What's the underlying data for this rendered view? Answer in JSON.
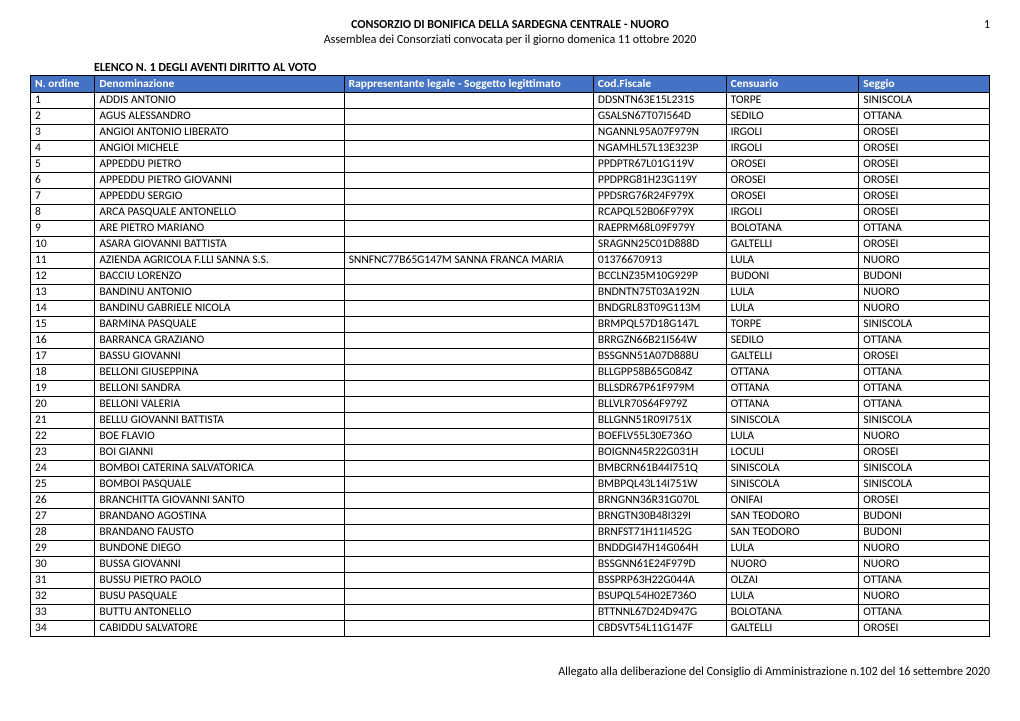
{
  "header": {
    "title": "CONSORZIO DI BONIFICA DELLA SARDEGNA CENTRALE - NUORO",
    "subtitle": "Assemblea dei Consorziati convocata per il giorno domenica 11 ottobre 2020",
    "page_number": "1",
    "list_title": "ELENCO N. 1 DEGLI AVENTI DIRITTO AL VOTO"
  },
  "table": {
    "columns": [
      "N. ordine",
      "Denominazione",
      "Rappresentante legale - Soggetto legittimato",
      "Cod.Fiscale",
      "Censuario",
      "Seggio"
    ],
    "rows": [
      [
        "1",
        "ADDIS ANTONIO",
        "",
        "DDSNTN63E15L231S",
        "TORPE",
        "SINISCOLA"
      ],
      [
        "2",
        "AGUS ALESSANDRO",
        "",
        "GSALSN67T07I564D",
        "SEDILO",
        "OTTANA"
      ],
      [
        "3",
        "ANGIOI ANTONIO LIBERATO",
        "",
        "NGANNL95A07F979N",
        "IRGOLI",
        "OROSEI"
      ],
      [
        "4",
        "ANGIOI MICHELE",
        "",
        "NGAMHL57L13E323P",
        "IRGOLI",
        "OROSEI"
      ],
      [
        "5",
        "APPEDDU PIETRO",
        "",
        "PPDPTR67L01G119V",
        "OROSEI",
        "OROSEI"
      ],
      [
        "6",
        "APPEDDU PIETRO GIOVANNI",
        "",
        "PPDPRG81H23G119Y",
        "OROSEI",
        "OROSEI"
      ],
      [
        "7",
        "APPEDDU SERGIO",
        "",
        "PPDSRG76R24F979X",
        "OROSEI",
        "OROSEI"
      ],
      [
        "8",
        "ARCA PASQUALE ANTONELLO",
        "",
        "RCAPQL52B06F979X",
        "IRGOLI",
        "OROSEI"
      ],
      [
        "9",
        "ARE PIETRO MARIANO",
        "",
        "RAEPRM68L09F979Y",
        "BOLOTANA",
        "OTTANA"
      ],
      [
        "10",
        "ASARA GIOVANNI BATTISTA",
        "",
        "SRAGNN25C01D888D",
        "GALTELLI",
        "OROSEI"
      ],
      [
        "11",
        "AZIENDA AGRICOLA F.LLI SANNA S.S.",
        "SNNFNC77B65G147M SANNA FRANCA MARIA",
        "01376670913",
        "LULA",
        "NUORO"
      ],
      [
        "12",
        "BACCIU LORENZO",
        "",
        "BCCLNZ35M10G929P",
        "BUDONI",
        "BUDONI"
      ],
      [
        "13",
        "BANDINU ANTONIO",
        "",
        "BNDNTN75T03A192N",
        "LULA",
        "NUORO"
      ],
      [
        "14",
        "BANDINU GABRIELE NICOLA",
        "",
        "BNDGRL83T09G113M",
        "LULA",
        "NUORO"
      ],
      [
        "15",
        "BARMINA PASQUALE",
        "",
        "BRMPQL57D18G147L",
        "TORPE",
        "SINISCOLA"
      ],
      [
        "16",
        "BARRANCA GRAZIANO",
        "",
        "BRRGZN66B21I564W",
        "SEDILO",
        "OTTANA"
      ],
      [
        "17",
        "BASSU GIOVANNI",
        "",
        "BSSGNN51A07D888U",
        "GALTELLI",
        "OROSEI"
      ],
      [
        "18",
        "BELLONI GIUSEPPINA",
        "",
        "BLLGPP58B65G084Z",
        "OTTANA",
        "OTTANA"
      ],
      [
        "19",
        "BELLONI SANDRA",
        "",
        "BLLSDR67P61F979M",
        "OTTANA",
        "OTTANA"
      ],
      [
        "20",
        "BELLONI VALERIA",
        "",
        "BLLVLR70S64F979Z",
        "OTTANA",
        "OTTANA"
      ],
      [
        "21",
        "BELLU GIOVANNI BATTISTA",
        "",
        "BLLGNN51R09I751X",
        "SINISCOLA",
        "SINISCOLA"
      ],
      [
        "22",
        "BOE FLAVIO",
        "",
        "BOEFLV55L30E736O",
        "LULA",
        "NUORO"
      ],
      [
        "23",
        "BOI GIANNI",
        "",
        "BOIGNN45R22G031H",
        "LOCULI",
        "OROSEI"
      ],
      [
        "24",
        "BOMBOI CATERINA SALVATORICA",
        "",
        "BMBCRN61B44I751Q",
        "SINISCOLA",
        "SINISCOLA"
      ],
      [
        "25",
        "BOMBOI PASQUALE",
        "",
        "BMBPQL43L14I751W",
        "SINISCOLA",
        "SINISCOLA"
      ],
      [
        "26",
        "BRANCHITTA GIOVANNI SANTO",
        "",
        "BRNGNN36R31G070L",
        "ONIFAI",
        "OROSEI"
      ],
      [
        "27",
        "BRANDANO AGOSTINA",
        "",
        "BRNGTN30B48I329I",
        "SAN TEODORO",
        "BUDONI"
      ],
      [
        "28",
        "BRANDANO FAUSTO",
        "",
        "BRNFST71H11I452G",
        "SAN TEODORO",
        "BUDONI"
      ],
      [
        "29",
        "BUNDONE DIEGO",
        "",
        "BNDDGI47H14G064H",
        "LULA",
        "NUORO"
      ],
      [
        "30",
        "BUSSA GIOVANNI",
        "",
        "BSSGNN61E24F979D",
        "NUORO",
        "NUORO"
      ],
      [
        "31",
        "BUSSU PIETRO PAOLO",
        "",
        "BSSPRP63H22G044A",
        "OLZAI",
        "OTTANA"
      ],
      [
        "32",
        "BUSU PASQUALE",
        "",
        "BSUPQL54H02E736O",
        "LULA",
        "NUORO"
      ],
      [
        "33",
        "BUTTU ANTONELLO",
        "",
        "BTTNNL67D24D947G",
        "BOLOTANA",
        "OTTANA"
      ],
      [
        "34",
        "CABIDDU SALVATORE",
        "",
        "CBDSVT54L11G147F",
        "GALTELLI",
        "OROSEI"
      ]
    ]
  },
  "footer": {
    "text": "Allegato alla deliberazione del Consiglio di Amministrazione n.102 del 16 settembre 2020"
  },
  "style": {
    "header_bg": "#4472c4",
    "header_fg": "#ffffff",
    "border_color": "#000000",
    "body_bg": "#ffffff",
    "font_family": "Calibri, Arial, sans-serif"
  }
}
